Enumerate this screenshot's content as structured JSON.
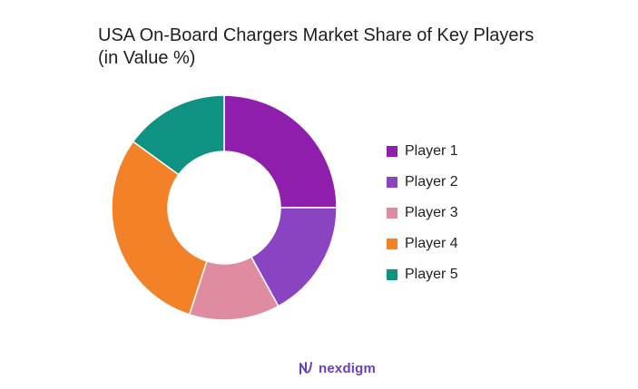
{
  "chart_data": {
    "type": "pie",
    "title_line1": "USA On-Board Chargers Market Share of Key Players",
    "title_line2": "(in Value %)",
    "categories": [
      "Player 1",
      "Player 2",
      "Player 3",
      "Player 4",
      "Player 5"
    ],
    "values": [
      25,
      17,
      13,
      30,
      15
    ],
    "colors": [
      "#8e1eab",
      "#8a44c2",
      "#e08ca0",
      "#f28128",
      "#0f9281"
    ],
    "donut": true,
    "legend_position": "right"
  },
  "brand": {
    "name": "nexdigm",
    "icon": "nexdigm-logo-icon"
  }
}
